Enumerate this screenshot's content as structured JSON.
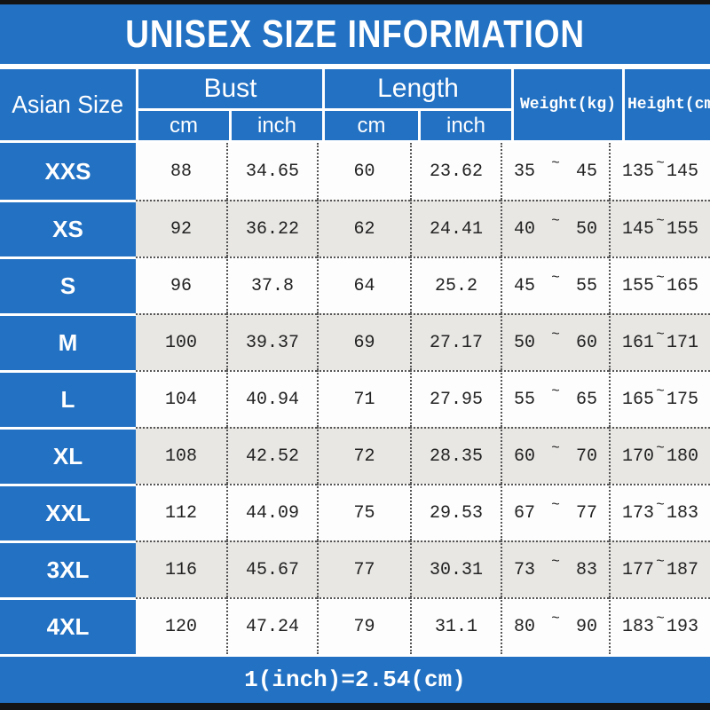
{
  "title": "UNISEX SIZE INFORMATION",
  "header": {
    "size_column": "Asian Size",
    "bust": {
      "label": "Bust",
      "units": [
        "cm",
        "inch"
      ]
    },
    "length": {
      "label": "Length",
      "units": [
        "cm",
        "inch"
      ]
    },
    "weight": "Weight(kg)",
    "height": "Height(cm)"
  },
  "symbols": {
    "tilde": "~"
  },
  "rows": [
    {
      "size": "XXS",
      "bust_cm": "88",
      "bust_inch": "34.65",
      "length_cm": "60",
      "length_inch": "23.62",
      "weight_min": "35",
      "weight_max": "45",
      "height_min": "135",
      "height_max": "145"
    },
    {
      "size": "XS",
      "bust_cm": "92",
      "bust_inch": "36.22",
      "length_cm": "62",
      "length_inch": "24.41",
      "weight_min": "40",
      "weight_max": "50",
      "height_min": "145",
      "height_max": "155"
    },
    {
      "size": "S",
      "bust_cm": "96",
      "bust_inch": "37.8",
      "length_cm": "64",
      "length_inch": "25.2",
      "weight_min": "45",
      "weight_max": "55",
      "height_min": "155",
      "height_max": "165"
    },
    {
      "size": "M",
      "bust_cm": "100",
      "bust_inch": "39.37",
      "length_cm": "69",
      "length_inch": "27.17",
      "weight_min": "50",
      "weight_max": "60",
      "height_min": "161",
      "height_max": "171"
    },
    {
      "size": "L",
      "bust_cm": "104",
      "bust_inch": "40.94",
      "length_cm": "71",
      "length_inch": "27.95",
      "weight_min": "55",
      "weight_max": "65",
      "height_min": "165",
      "height_max": "175"
    },
    {
      "size": "XL",
      "bust_cm": "108",
      "bust_inch": "42.52",
      "length_cm": "72",
      "length_inch": "28.35",
      "weight_min": "60",
      "weight_max": "70",
      "height_min": "170",
      "height_max": "180"
    },
    {
      "size": "XXL",
      "bust_cm": "112",
      "bust_inch": "44.09",
      "length_cm": "75",
      "length_inch": "29.53",
      "weight_min": "67",
      "weight_max": "77",
      "height_min": "173",
      "height_max": "183"
    },
    {
      "size": "3XL",
      "bust_cm": "116",
      "bust_inch": "45.67",
      "length_cm": "77",
      "length_inch": "30.31",
      "weight_min": "73",
      "weight_max": "83",
      "height_min": "177",
      "height_max": "187"
    },
    {
      "size": "4XL",
      "bust_cm": "120",
      "bust_inch": "47.24",
      "length_cm": "79",
      "length_inch": "31.1",
      "weight_min": "80",
      "weight_max": "90",
      "height_min": "183",
      "height_max": "193"
    }
  ],
  "footer": "1(inch)=2.54(cm)",
  "colors": {
    "blue": "#2271c3",
    "row_alt_gray": "#e8e7e4",
    "row_white": "#fdfdfd",
    "bar_black": "#141414",
    "text_dark": "#222222",
    "text_white": "#ffffff"
  }
}
